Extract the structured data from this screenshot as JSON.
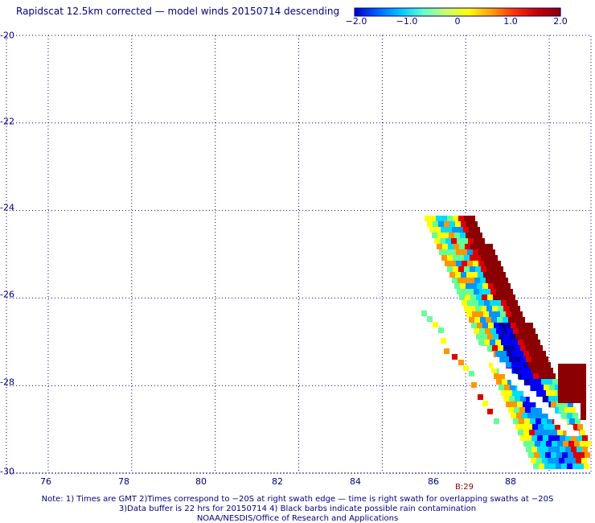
{
  "title": "Rapidscat 12.5km corrected — model winds 20150714 descending",
  "colorbar": {
    "tick_labels": [
      "−2.0",
      "−1.0",
      "0",
      "1.0",
      "2.0"
    ],
    "range": [
      -2.0,
      2.0
    ],
    "colors": [
      "#0000c8",
      "#0064ff",
      "#00c8ff",
      "#64ffc8",
      "#c8ff64",
      "#ffff00",
      "#ffa000",
      "#ff3200",
      "#c80000",
      "#8b0000"
    ]
  },
  "axes": {
    "lat_labels": [
      "-20",
      "-22",
      "-24",
      "-26",
      "-28",
      "-30"
    ],
    "lon_labels": [
      "76",
      "78",
      "80",
      "82",
      "84",
      "86",
      "88"
    ],
    "lat_range": [
      -30,
      -20
    ],
    "lon_range": [
      75,
      89
    ],
    "grid": "dotted"
  },
  "time_label": "B:29",
  "notes": [
    "Note: 1) Times are GMT 2)Times correspond to −20S at right swath edge — time is right swath for overlapping swaths at −20S",
    "3)Data buffer is 22 hrs for 20150714 4) Black barbs indicate possible rain contamination",
    "NOAA/NESDIS/Office of Research and Applications"
  ],
  "swath_colors": {
    "dark_red": "#8b0000",
    "red": "#dc0000",
    "orange": "#ff9600",
    "yellow": "#ffff00",
    "light_green": "#64ff96",
    "cyan": "#00dcff",
    "light_blue": "#0096ff",
    "blue": "#0000ff",
    "navy": "#0000aa"
  }
}
